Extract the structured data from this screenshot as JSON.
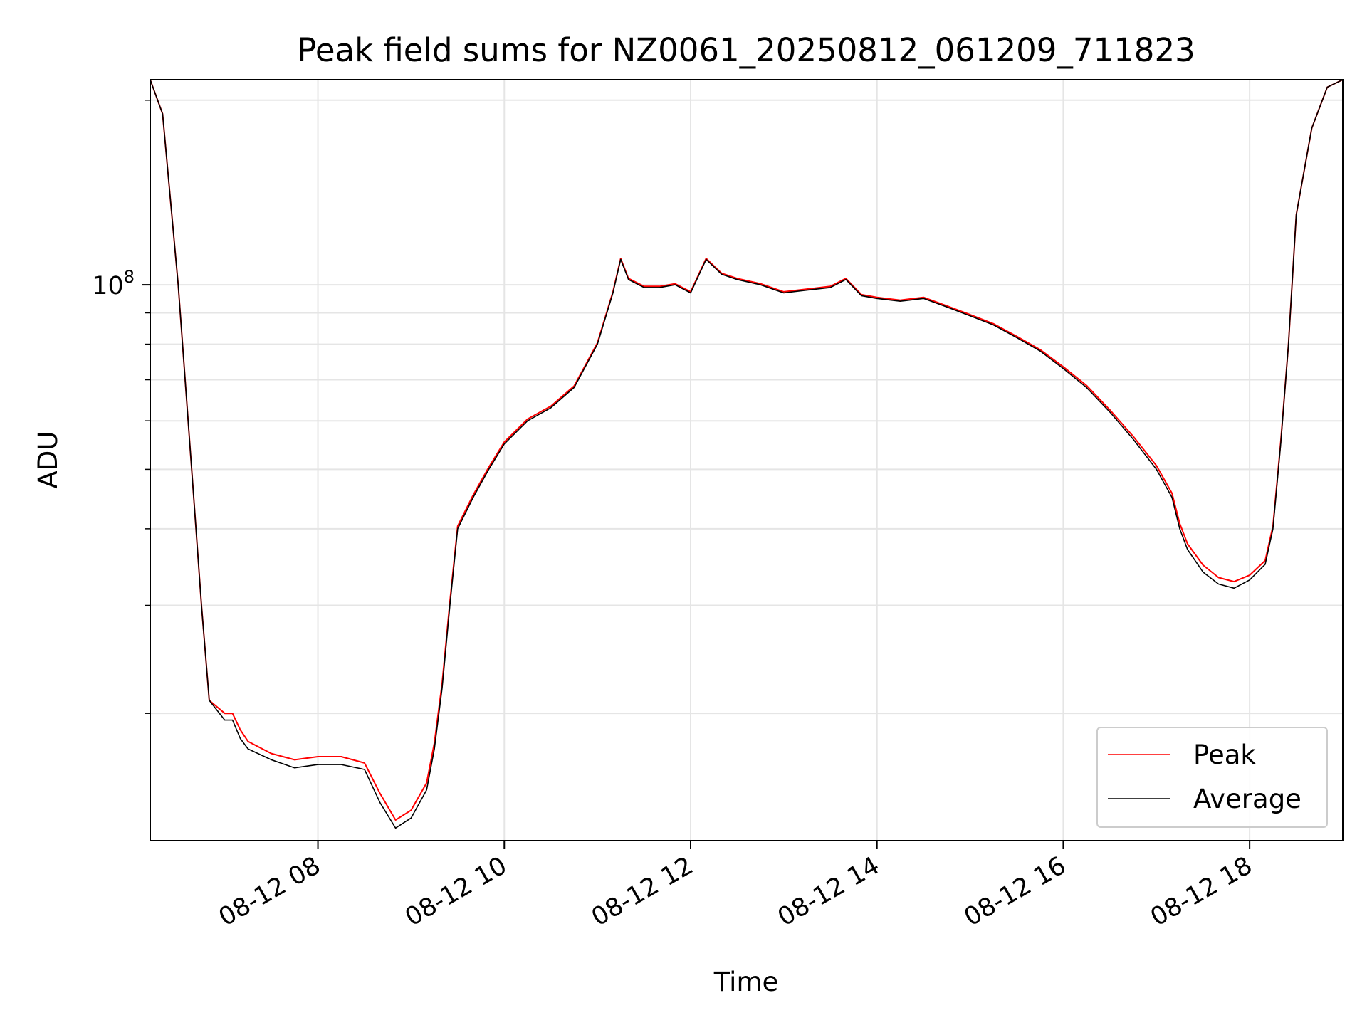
{
  "chart_data": {
    "type": "line",
    "title": "Peak field sums for NZ0061_20250812_061209_711823",
    "xlabel": "Time",
    "ylabel": "ADU",
    "y_scale": "log",
    "ylim": [
      12400000,
      216000000
    ],
    "xlim": [
      "2025-08-12 06:12",
      "2025-08-12 19:00"
    ],
    "x_ticks": [
      "2025-08-12 08:00",
      "2025-08-12 10:00",
      "2025-08-12 12:00",
      "2025-08-12 14:00",
      "2025-08-12 16:00",
      "2025-08-12 18:00"
    ],
    "x_tick_labels": [
      "08-12 08",
      "08-12 10",
      "08-12 12",
      "08-12 14",
      "08-12 16",
      "08-12 18"
    ],
    "y_major_tick_labels": [
      {
        "base": "10",
        "exp": "8",
        "value": 100000000
      }
    ],
    "y_minor_ticks": [
      20000000,
      30000000,
      40000000,
      50000000,
      60000000,
      70000000,
      80000000,
      90000000,
      200000000
    ],
    "grid": true,
    "legend": {
      "position": "bottom-right",
      "entries": [
        "Peak",
        "Average"
      ]
    },
    "colors": {
      "Peak": "#ff0000",
      "Average": "#000000"
    },
    "x": [
      "06:12",
      "06:20",
      "06:30",
      "06:40",
      "06:45",
      "06:50",
      "07:00",
      "07:05",
      "07:10",
      "07:15",
      "07:30",
      "07:45",
      "08:00",
      "08:15",
      "08:30",
      "08:40",
      "08:50",
      "09:00",
      "09:10",
      "09:15",
      "09:20",
      "09:25",
      "09:30",
      "09:40",
      "09:50",
      "10:00",
      "10:15",
      "10:30",
      "10:45",
      "11:00",
      "11:10",
      "11:15",
      "11:20",
      "11:30",
      "11:40",
      "11:50",
      "12:00",
      "12:10",
      "12:20",
      "12:30",
      "12:45",
      "13:00",
      "13:15",
      "13:30",
      "13:40",
      "13:50",
      "14:00",
      "14:15",
      "14:30",
      "14:45",
      "15:00",
      "15:15",
      "15:30",
      "15:45",
      "16:00",
      "16:15",
      "16:30",
      "16:45",
      "17:00",
      "17:10",
      "17:15",
      "17:20",
      "17:30",
      "17:40",
      "17:50",
      "18:00",
      "18:10",
      "18:15",
      "18:20",
      "18:25",
      "18:30",
      "18:40",
      "18:50",
      "19:00"
    ],
    "series": [
      {
        "name": "Average",
        "values": [
          216000000,
          190000000,
          100000000,
          45000000,
          30000000,
          21000000,
          19500000,
          19500000,
          18200000,
          17500000,
          16800000,
          16300000,
          16500000,
          16500000,
          16200000,
          14300000,
          13000000,
          13500000,
          15000000,
          17500000,
          22000000,
          30000000,
          40000000,
          45000000,
          50000000,
          55000000,
          60000000,
          63000000,
          68000000,
          80000000,
          97000000,
          110000000,
          102000000,
          99000000,
          99000000,
          100000000,
          97000000,
          110000000,
          104000000,
          102000000,
          100000000,
          97000000,
          98000000,
          99000000,
          102000000,
          96000000,
          95000000,
          94000000,
          95000000,
          92000000,
          89000000,
          86000000,
          82000000,
          78000000,
          73000000,
          68000000,
          62000000,
          56000000,
          50000000,
          45000000,
          40000000,
          37000000,
          34000000,
          32500000,
          32000000,
          33000000,
          35000000,
          40000000,
          55000000,
          80000000,
          130000000,
          180000000,
          210000000,
          216000000
        ]
      },
      {
        "name": "Peak",
        "values": [
          216000000,
          190000000,
          100000000,
          45000000,
          30000000,
          21000000,
          20000000,
          20000000,
          18800000,
          18000000,
          17200000,
          16800000,
          17000000,
          17000000,
          16600000,
          14800000,
          13400000,
          13900000,
          15400000,
          17900000,
          22400000,
          30400000,
          40400000,
          45400000,
          50400000,
          55400000,
          60400000,
          63400000,
          68400000,
          80400000,
          97400000,
          110400000,
          102400000,
          99400000,
          99400000,
          100400000,
          97400000,
          110400000,
          104400000,
          102400000,
          100400000,
          97400000,
          98400000,
          99400000,
          102400000,
          96400000,
          95400000,
          94400000,
          95400000,
          92400000,
          89400000,
          86400000,
          82400000,
          78400000,
          73500000,
          68500000,
          62500000,
          56600000,
          50700000,
          45700000,
          40800000,
          37800000,
          34900000,
          33300000,
          32800000,
          33600000,
          35500000,
          40400000,
          55400000,
          80000000,
          130000000,
          180000000,
          210000000,
          216000000
        ]
      }
    ]
  }
}
